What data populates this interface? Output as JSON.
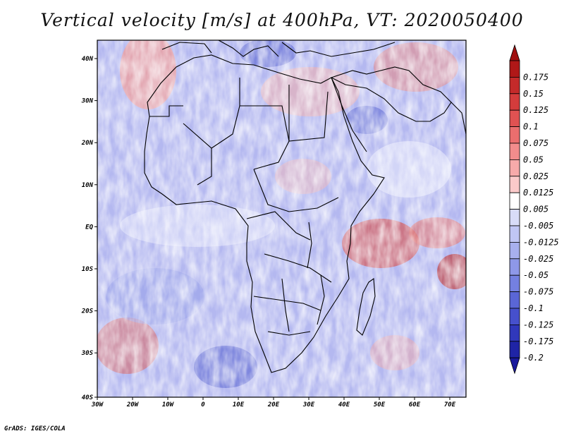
{
  "title": "Vertical velocity [m/s] at 400hPa, VT: 2020050400",
  "footer": "GrADS: IGES/COLA",
  "lat_labels": [
    "40N",
    "30N",
    "20N",
    "10N",
    "EQ",
    "10S",
    "20S",
    "30S",
    "40S"
  ],
  "lon_labels": [
    "30W",
    "20W",
    "10W",
    "0",
    "10E",
    "20E",
    "30E",
    "40E",
    "50E",
    "60E",
    "70E"
  ],
  "colorbar": {
    "labels": [
      "0.175",
      "0.15",
      "0.125",
      "0.1",
      "0.075",
      "0.05",
      "0.025",
      "0.0125",
      "0.005",
      "-0.005",
      "-0.0125",
      "-0.025",
      "-0.05",
      "-0.075",
      "-0.1",
      "-0.125",
      "-0.175",
      "-0.2"
    ],
    "colors": [
      "#b01818",
      "#c42a2a",
      "#d43c3c",
      "#e05252",
      "#ea6e6e",
      "#f28c8c",
      "#f7aaaa",
      "#fbcaca",
      "#ffffff",
      "#d8dcf8",
      "#c0c6f4",
      "#a8b0ee",
      "#8e98e8",
      "#7480e0",
      "#5a66d6",
      "#4650cc",
      "#3038bb",
      "#1f24a6"
    ],
    "top_color": "#a01010",
    "bottom_color": "#1a1a9c"
  }
}
